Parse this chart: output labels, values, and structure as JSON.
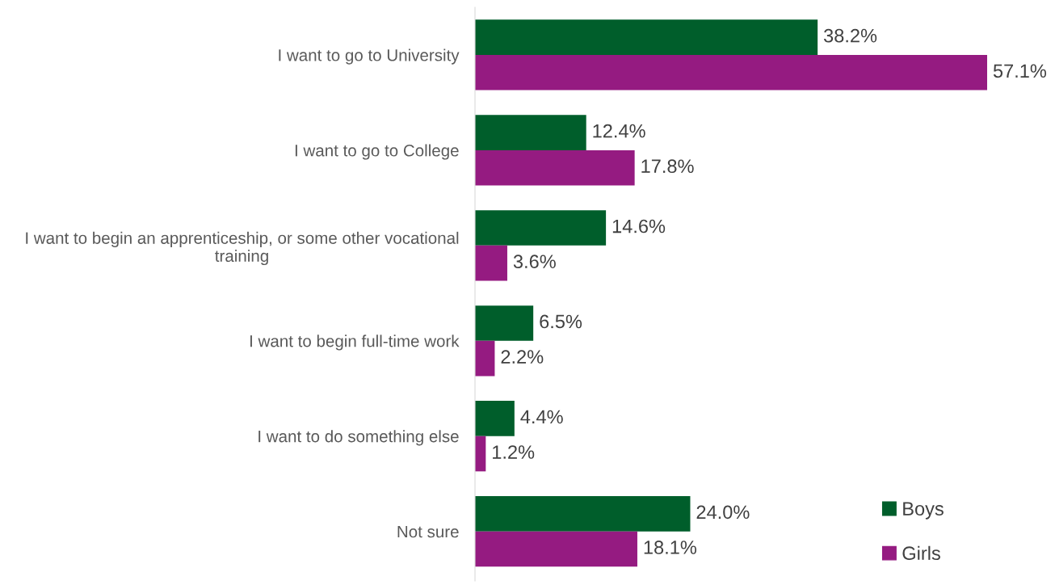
{
  "chart_data": {
    "type": "bar",
    "orientation": "horizontal",
    "categories": [
      "I want to go to University",
      "I want to go to College",
      "I want to begin an apprenticeship, or some other vocational training",
      "I want to begin full-time work",
      "I want to do something else",
      "Not sure"
    ],
    "series": [
      {
        "name": "Boys",
        "color": "#005e2b",
        "values": [
          38.2,
          12.4,
          14.6,
          6.5,
          4.4,
          24.0
        ],
        "value_labels": [
          "38.2%",
          "12.4%",
          "14.6%",
          "6.5%",
          "4.4%",
          "24.0%"
        ]
      },
      {
        "name": "Girls",
        "color": "#951b81",
        "values": [
          57.1,
          17.8,
          3.6,
          2.2,
          1.2,
          18.1
        ],
        "value_labels": [
          "57.1%",
          "17.8%",
          "3.6%",
          "2.2%",
          "1.2%",
          "18.1%"
        ]
      }
    ],
    "tick_labels": "y",
    "legend": "bottom right",
    "grid": false
  }
}
